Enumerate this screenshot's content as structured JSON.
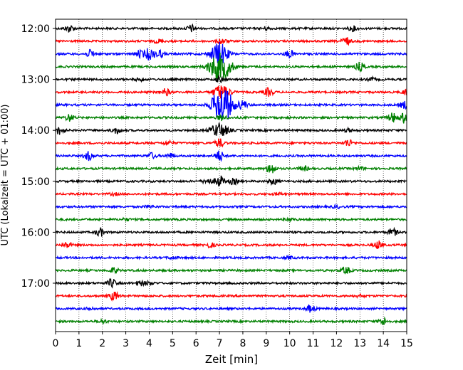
{
  "chart_data": {
    "type": "line",
    "title": "",
    "xlabel": "Zeit  [min]",
    "ylabel": "UTC (Lokalzeit = UTC + 01:00)",
    "xlim": [
      0,
      15
    ],
    "x_ticks": [
      0,
      1,
      2,
      3,
      4,
      5,
      6,
      7,
      8,
      9,
      10,
      11,
      12,
      13,
      14,
      15
    ],
    "y_tick_labels": [
      "12:00",
      "13:00",
      "14:00",
      "15:00",
      "16:00",
      "17:00"
    ],
    "trace_interval_minutes": 15,
    "start_time": "12:00",
    "grid": "vertical dotted at each minute",
    "trace_colors": [
      "#000000",
      "#ff0000",
      "#0000ff",
      "#008000"
    ],
    "traces": [
      {
        "start": "12:00",
        "color": "#000000",
        "events": [
          [
            0.6,
            1.2
          ],
          [
            5.8,
            1.2
          ],
          [
            9.0,
            0.5
          ],
          [
            12.7,
            0.8
          ]
        ]
      },
      {
        "start": "12:15",
        "color": "#ff0000",
        "events": [
          [
            4.4,
            0.6
          ],
          [
            7.1,
            0.9
          ],
          [
            12.4,
            1.4
          ]
        ]
      },
      {
        "start": "12:30",
        "color": "#0000ff",
        "events": [
          [
            1.5,
            1.3
          ],
          [
            3.6,
            1.2
          ],
          [
            4.0,
            2.0
          ],
          [
            4.4,
            1.5
          ],
          [
            7.0,
            4.0
          ],
          [
            10.0,
            1.3
          ]
        ]
      },
      {
        "start": "12:45",
        "color": "#008000",
        "events": [
          [
            6.8,
            2.8
          ],
          [
            7.2,
            3.5
          ],
          [
            13.0,
            1.5
          ]
        ]
      },
      {
        "start": "13:00",
        "color": "#000000",
        "events": [
          [
            3.6,
            0.5
          ],
          [
            7.0,
            0.9
          ],
          [
            13.5,
            0.5
          ]
        ]
      },
      {
        "start": "13:15",
        "color": "#ff0000",
        "events": [
          [
            4.7,
            1.2
          ],
          [
            7.1,
            2.5
          ],
          [
            9.1,
            1.4
          ],
          [
            15.0,
            1.0
          ]
        ]
      },
      {
        "start": "13:30",
        "color": "#0000ff",
        "events": [
          [
            7.0,
            4.5
          ],
          [
            7.3,
            3.5
          ],
          [
            8.0,
            1.5
          ],
          [
            14.9,
            1.2
          ]
        ]
      },
      {
        "start": "13:45",
        "color": "#008000",
        "events": [
          [
            0.6,
            1.2
          ],
          [
            7.1,
            1.0
          ],
          [
            14.4,
            1.6
          ],
          [
            14.9,
            1.8
          ]
        ]
      },
      {
        "start": "14:00",
        "color": "#000000",
        "events": [
          [
            0.2,
            1.5
          ],
          [
            2.6,
            1.0
          ],
          [
            7.0,
            2.5
          ],
          [
            12.5,
            0.6
          ]
        ]
      },
      {
        "start": "14:15",
        "color": "#ff0000",
        "events": [
          [
            4.8,
            0.7
          ],
          [
            7.0,
            1.5
          ],
          [
            12.5,
            1.2
          ]
        ]
      },
      {
        "start": "14:30",
        "color": "#0000ff",
        "events": [
          [
            1.4,
            1.5
          ],
          [
            4.1,
            1.0
          ],
          [
            7.0,
            1.8
          ],
          [
            4.9,
            0.8
          ]
        ]
      },
      {
        "start": "14:45",
        "color": "#008000",
        "events": [
          [
            9.2,
            2.0
          ],
          [
            10.6,
            0.8
          ],
          [
            13.0,
            0.5
          ]
        ]
      },
      {
        "start": "15:00",
        "color": "#000000",
        "events": [
          [
            6.5,
            1.0
          ],
          [
            7.0,
            2.0
          ],
          [
            7.6,
            1.0
          ],
          [
            9.3,
            1.0
          ]
        ]
      },
      {
        "start": "15:15",
        "color": "#ff0000",
        "events": [
          [
            2.5,
            0.4
          ],
          [
            9.5,
            0.4
          ]
        ]
      },
      {
        "start": "15:30",
        "color": "#0000ff",
        "events": [
          [
            4.0,
            0.4
          ],
          [
            12.0,
            0.4
          ]
        ]
      },
      {
        "start": "15:45",
        "color": "#008000",
        "events": [
          [
            3.0,
            0.4
          ],
          [
            10.0,
            0.4
          ]
        ]
      },
      {
        "start": "16:00",
        "color": "#000000",
        "events": [
          [
            1.9,
            1.4
          ],
          [
            14.4,
            1.3
          ]
        ]
      },
      {
        "start": "16:15",
        "color": "#ff0000",
        "events": [
          [
            0.5,
            1.0
          ],
          [
            6.6,
            0.8
          ],
          [
            13.8,
            1.4
          ]
        ]
      },
      {
        "start": "16:30",
        "color": "#0000ff",
        "events": [
          [
            5.0,
            0.4
          ],
          [
            10.0,
            0.4
          ]
        ]
      },
      {
        "start": "16:45",
        "color": "#008000",
        "events": [
          [
            2.5,
            0.9
          ],
          [
            12.4,
            1.3
          ]
        ]
      },
      {
        "start": "17:00",
        "color": "#000000",
        "events": [
          [
            2.4,
            1.4
          ],
          [
            3.6,
            0.8
          ],
          [
            4.0,
            0.6
          ]
        ]
      },
      {
        "start": "17:15",
        "color": "#ff0000",
        "events": [
          [
            2.5,
            1.5
          ],
          [
            13.0,
            0.4
          ]
        ]
      },
      {
        "start": "17:30",
        "color": "#0000ff",
        "events": [
          [
            1.5,
            0.4
          ],
          [
            10.9,
            1.2
          ]
        ]
      },
      {
        "start": "17:45",
        "color": "#008000",
        "events": [
          [
            2.0,
            0.5
          ],
          [
            14.0,
            1.2
          ]
        ]
      }
    ]
  }
}
